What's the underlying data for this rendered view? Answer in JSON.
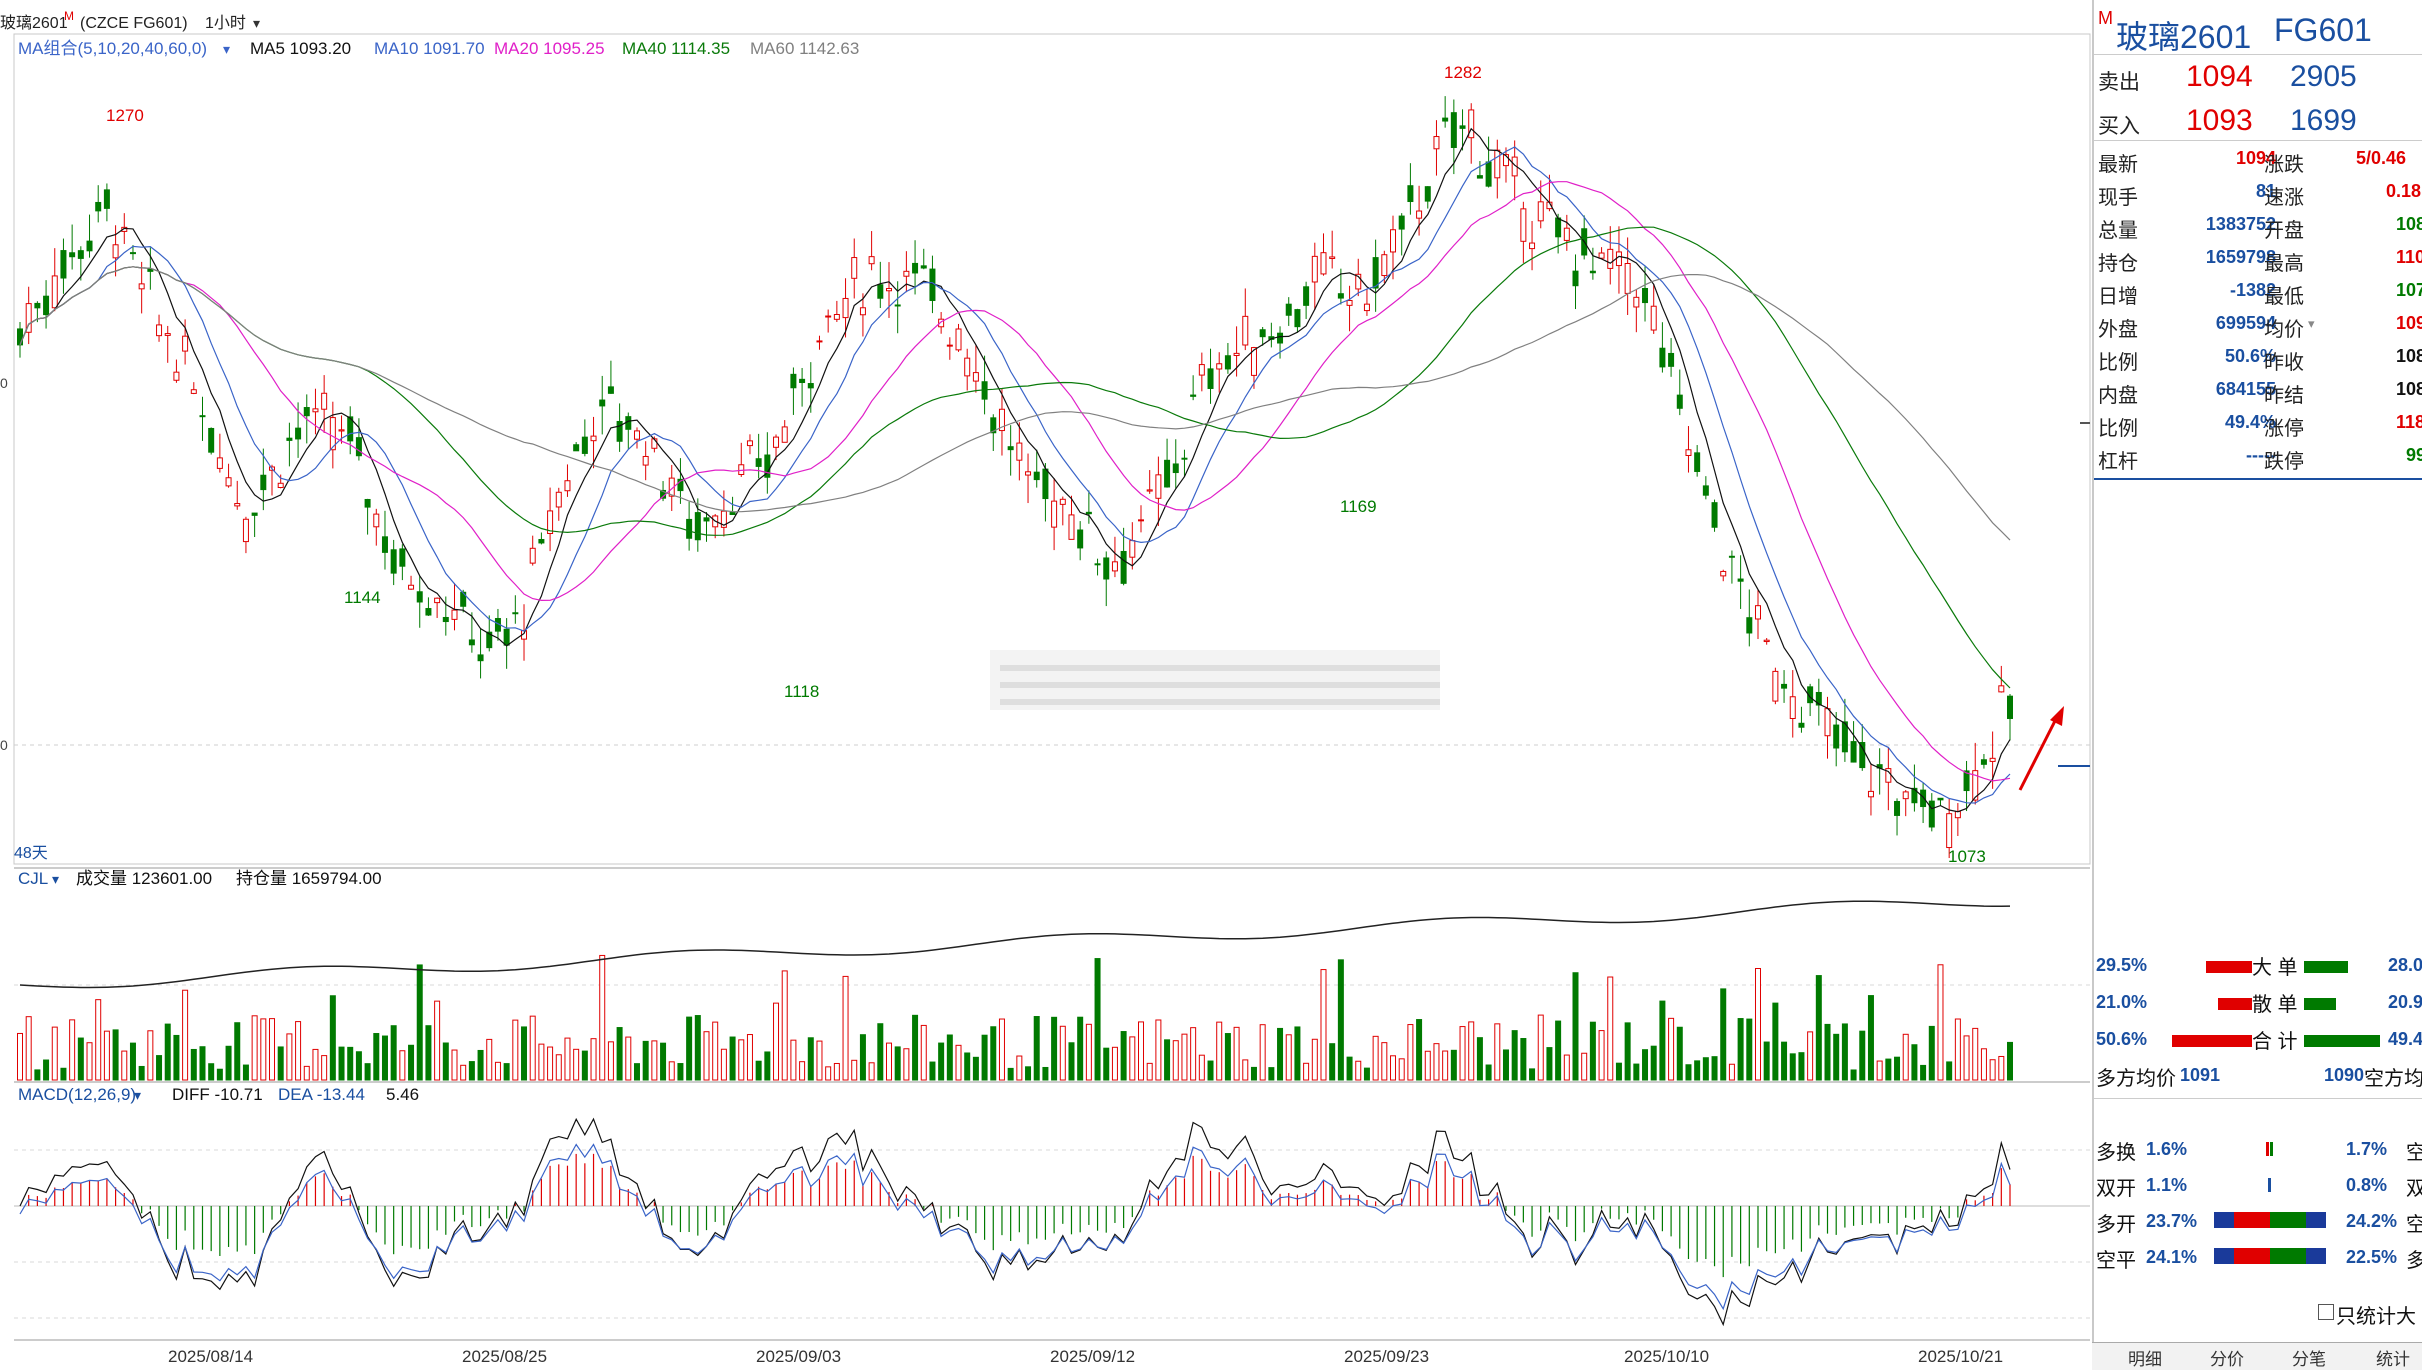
{
  "header": {
    "title": "玻璃2601",
    "mark": "M",
    "code": "(CZCE FG601)",
    "period": "1小时",
    "period_arrow": "▾"
  },
  "ma_legend": {
    "group": "MA组合(5,10,20,40,60,0)",
    "arrow": "▾",
    "ma5": "MA5 1093.20",
    "ma10": "MA10 1091.70",
    "ma20": "MA20 1095.25",
    "ma40": "MA40 1114.35",
    "ma60": "MA60 1142.63"
  },
  "price_labels": {
    "high_left": "1270",
    "low_1": "1144",
    "low_2": "1118",
    "low_3": "1169",
    "high_main": "1282",
    "low_last": "1073",
    "days": "48天",
    "axis_0": "0",
    "axis_1": "0"
  },
  "volume_legend": {
    "name": "CJL",
    "arrow": "▾",
    "vol": "成交量 123601.00",
    "oi": "持仓量 1659794.00"
  },
  "macd_legend": {
    "name": "MACD(12,26,9)",
    "arrow": "▾",
    "diff": "DIFF -10.71",
    "dea": "DEA -13.44",
    "macd": "5.46"
  },
  "dates": [
    "2025/08/14",
    "2025/08/25",
    "2025/09/03",
    "2025/09/12",
    "2025/09/23",
    "2025/10/10",
    "2025/10/21"
  ],
  "quote": {
    "mark": "M",
    "name": "玻璃2601",
    "code": "FG601",
    "sell_label": "卖出",
    "sell_price": "1094",
    "sell_qty": "2905",
    "buy_label": "买入",
    "buy_price": "1093",
    "buy_qty": "1699",
    "rows_left": [
      {
        "label": "最新",
        "value": "1094"
      },
      {
        "label": "现手",
        "value": "81"
      },
      {
        "label": "总量",
        "value": "1383752"
      },
      {
        "label": "持仓",
        "value": "1659798"
      },
      {
        "label": "日增",
        "value": "-1382"
      },
      {
        "label": "外盘",
        "value": "699594"
      },
      {
        "label": "比例",
        "value": "50.6%"
      },
      {
        "label": "内盘",
        "value": "684155"
      },
      {
        "label": "比例",
        "value": "49.4%"
      },
      {
        "label": "杠杆",
        "value": "-----"
      }
    ],
    "rows_right": [
      {
        "label": "涨跌",
        "value": "5/0.46"
      },
      {
        "label": "速涨",
        "value": "0.18"
      },
      {
        "label": "开盘",
        "value": "108"
      },
      {
        "label": "最高",
        "value": "110"
      },
      {
        "label": "最低",
        "value": "107"
      },
      {
        "label": "均价",
        "value": "109"
      },
      {
        "label": "昨收",
        "value": "108"
      },
      {
        "label": "昨结",
        "value": "108"
      },
      {
        "label": "涨停",
        "value": "118"
      },
      {
        "label": "跌停",
        "value": "99"
      }
    ]
  },
  "flow": {
    "big_left": "29.5%",
    "big_label": "大 单",
    "big_right": "28.0",
    "small_left": "21.0%",
    "small_label": "散 单",
    "small_right": "20.9",
    "total_left": "50.6%",
    "total_label": "合 计",
    "total_right": "49.4",
    "long_avg_label": "多方均价",
    "long_avg": "1091",
    "short_avg": "1090",
    "short_avg_label": "空方均"
  },
  "positions": [
    {
      "label": "多换",
      "left": "1.6%",
      "right": "1.7%",
      "tail": "空"
    },
    {
      "label": "双开",
      "left": "1.1%",
      "right": "0.8%",
      "tail": "双"
    },
    {
      "label": "多开",
      "left": "23.7%",
      "right": "24.2%",
      "tail": "空"
    },
    {
      "label": "空平",
      "left": "24.1%",
      "right": "22.5%",
      "tail": "多"
    }
  ],
  "stat_checkbox": "只统计大",
  "tabs": [
    "明细",
    "分价",
    "分笔",
    "统计"
  ],
  "colors": {
    "up": "#e00000",
    "down": "#007a00",
    "ma5": "#111111",
    "ma10": "#3a64c8",
    "ma20": "#e020c8",
    "ma40": "#0a7a0a",
    "ma60": "#808080"
  }
}
